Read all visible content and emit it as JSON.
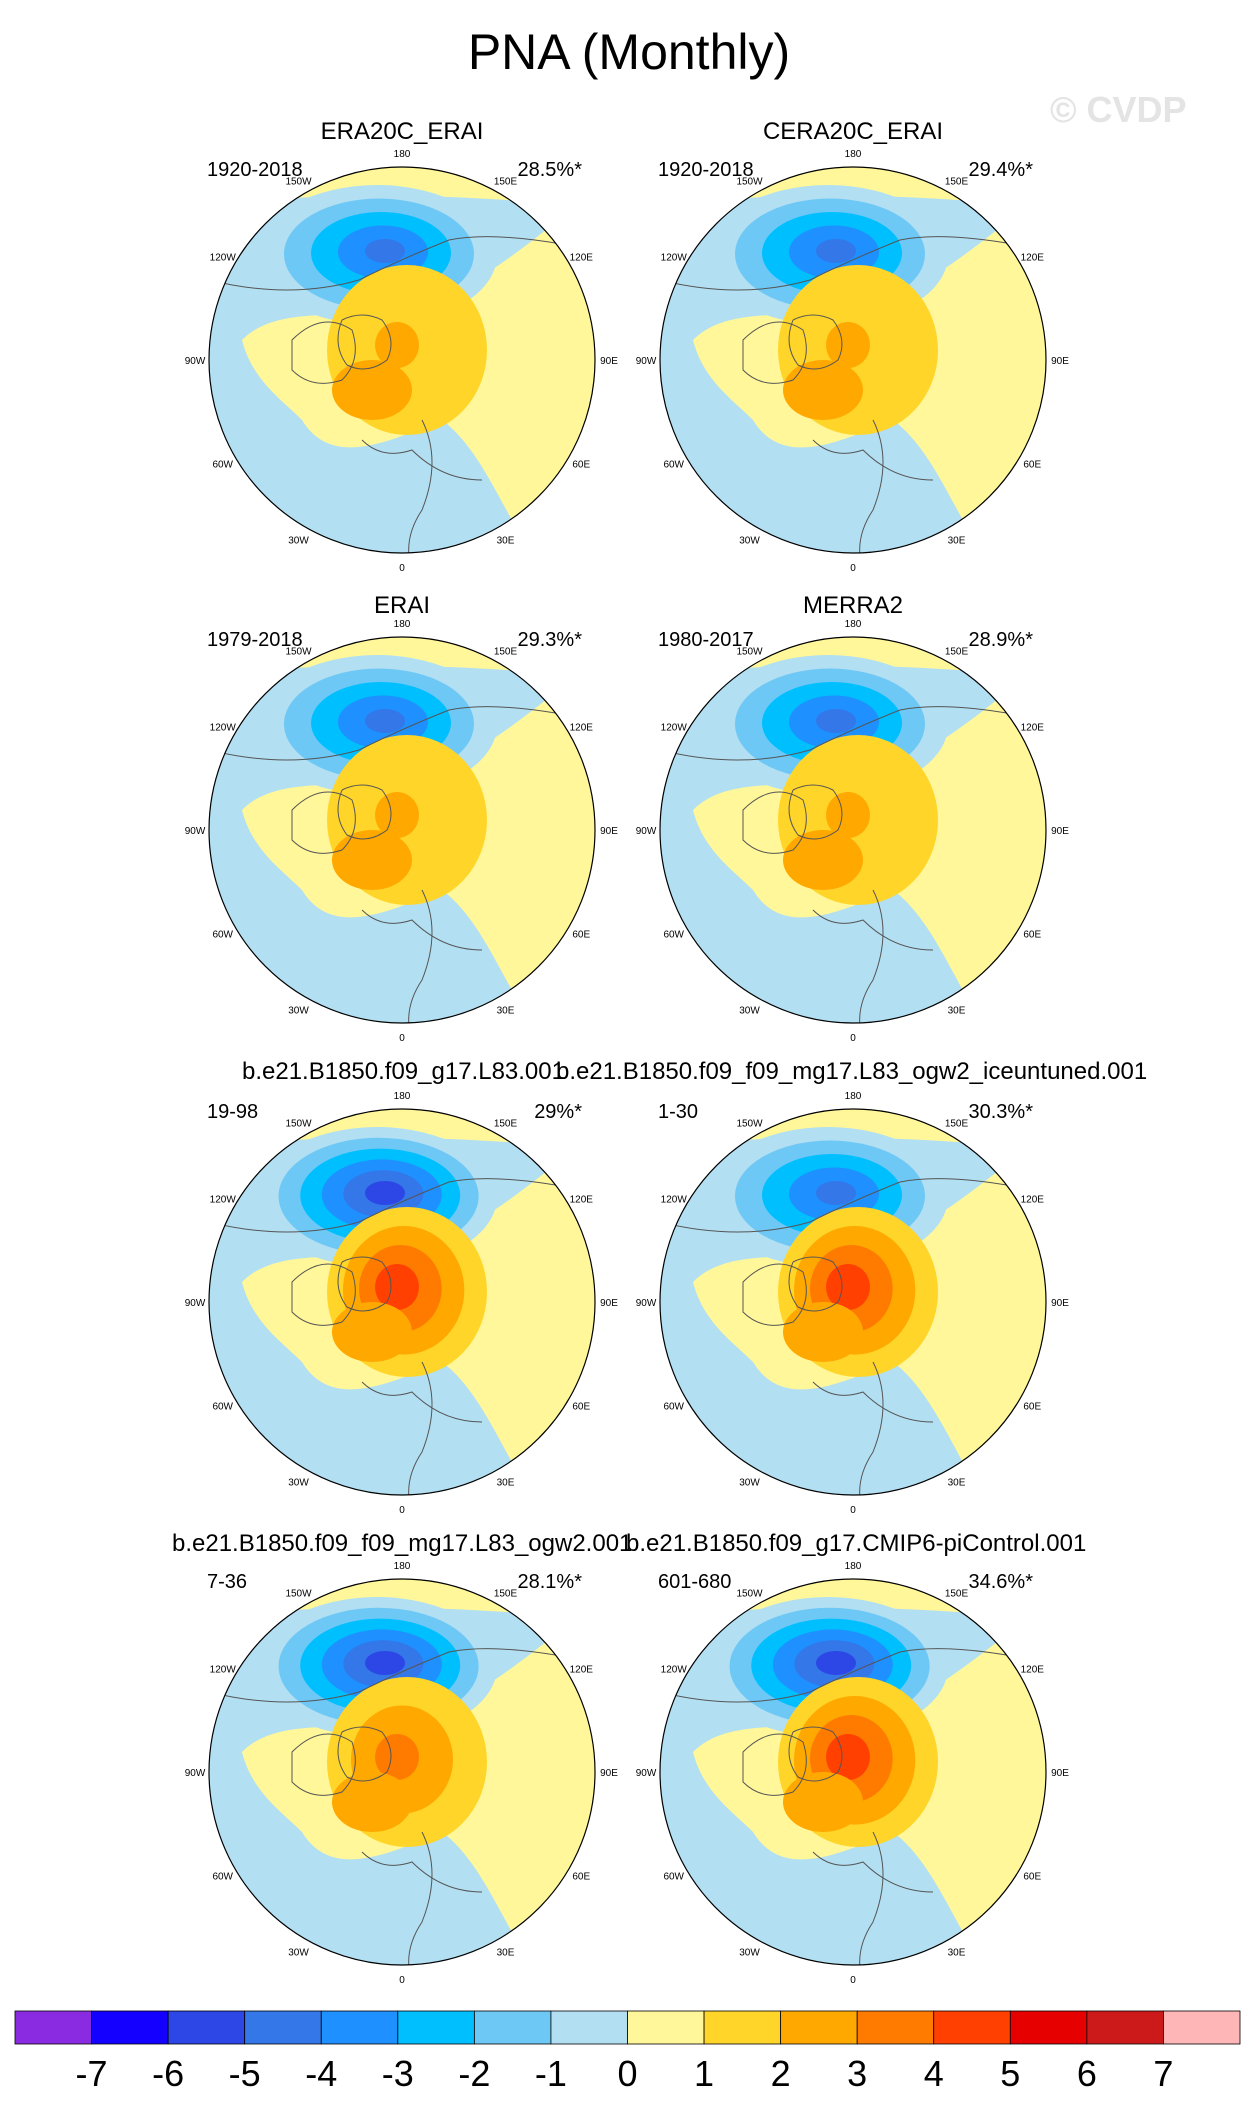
{
  "title": "PNA (Monthly)",
  "watermark": "© CVDP",
  "chart_data": {
    "type": "heatmap",
    "projection": "north polar stereographic",
    "variable": "PNA regression pattern",
    "longitude_labels": [
      "180",
      "150E",
      "120E",
      "90E",
      "60E",
      "30E",
      "0",
      "30W",
      "60W",
      "90W",
      "120W",
      "150W"
    ],
    "panels": [
      {
        "name": "ERA20C_ERAI",
        "years": "1920-2018",
        "pct": "28.5%*",
        "neg_peak": -5,
        "pos_peak": 2
      },
      {
        "name": "CERA20C_ERAI",
        "years": "1920-2018",
        "pct": "29.4%*",
        "neg_peak": -5,
        "pos_peak": 2
      },
      {
        "name": "ERAI",
        "years": "1979-2018",
        "pct": "29.3%*",
        "neg_peak": -5,
        "pos_peak": 2
      },
      {
        "name": "MERRA2",
        "years": "1980-2017",
        "pct": "28.9%*",
        "neg_peak": -5,
        "pos_peak": 2
      },
      {
        "name": "b.e21.B1850.f09_g17.L83.001",
        "years": "19-98",
        "pct": "29%*",
        "neg_peak": -6,
        "pos_peak": 4
      },
      {
        "name": "b.e21.B1850.f09_f09_mg17.L83_ogw2_iceuntuned.001",
        "years": "1-30",
        "pct": "30.3%*",
        "neg_peak": -5,
        "pos_peak": 4
      },
      {
        "name": "b.e21.B1850.f09_f09_mg17.L83_ogw2.001",
        "years": "7-36",
        "pct": "28.1%*",
        "neg_peak": -6,
        "pos_peak": 3
      },
      {
        "name": "b.e21.B1850.f09_g17.CMIP6-piControl.001",
        "years": "601-680",
        "pct": "34.6%*",
        "neg_peak": -6,
        "pos_peak": 4
      }
    ],
    "colorbar": {
      "labels": [
        "-7",
        "-6",
        "-5",
        "-4",
        "-3",
        "-2",
        "-1",
        "0",
        "1",
        "2",
        "3",
        "4",
        "5",
        "6",
        "7"
      ],
      "colors": [
        "#8a2be2",
        "#1400ff",
        "#2d46e6",
        "#3377e8",
        "#1e90ff",
        "#00bfff",
        "#6ec8f5",
        "#b2dff2",
        "#fff799",
        "#ffd52a",
        "#ffa800",
        "#ff7b00",
        "#ff4000",
        "#e60000",
        "#cc1a1a",
        "#ffb6b6"
      ]
    }
  }
}
